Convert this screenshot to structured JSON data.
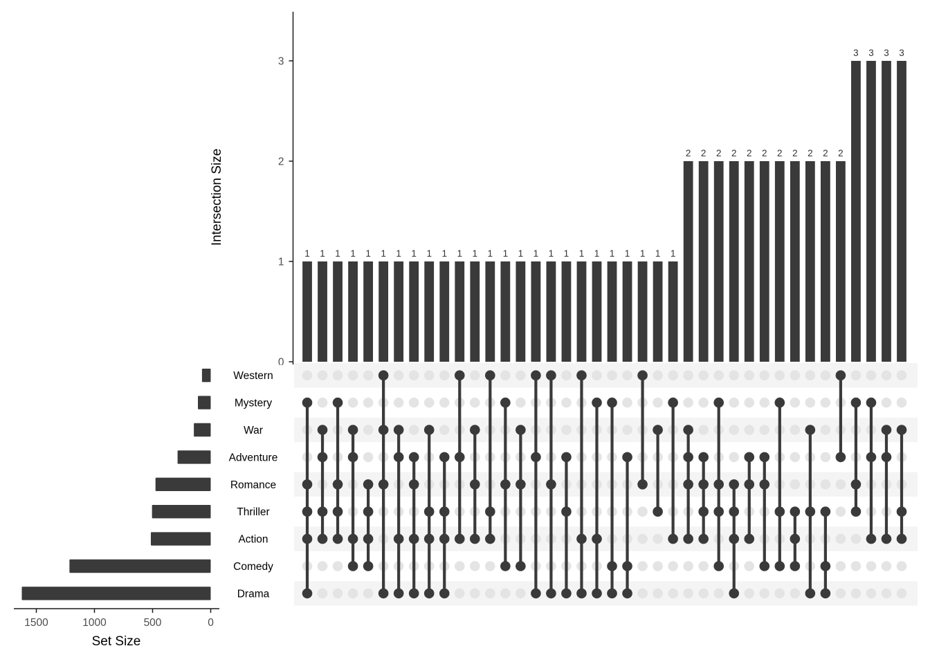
{
  "chart_data": {
    "type": "upset",
    "intersection_axis": {
      "label": "Intersection Size",
      "ticks": [
        0,
        1,
        2,
        3
      ],
      "range": [
        0,
        3.5
      ]
    },
    "set_axis": {
      "label": "Set Size",
      "ticks": [
        1500,
        1000,
        500,
        0
      ],
      "range": [
        0,
        1700
      ]
    },
    "legend_position": "none",
    "grid": false,
    "colors": {
      "bar": "#3a3a3a",
      "active_dot": "#3a3a3a",
      "inactive_dot": "#e4e4e4",
      "stripe": "#f4f4f4",
      "axis": "#1a1a1a",
      "tick_label": "#4d4d4d",
      "value_label": "#333333",
      "set_label": "#000000",
      "background": "#ffffff"
    },
    "sets": [
      {
        "name": "Western",
        "size": 75
      },
      {
        "name": "Mystery",
        "size": 110
      },
      {
        "name": "War",
        "size": 145
      },
      {
        "name": "Adventure",
        "size": 285
      },
      {
        "name": "Romance",
        "size": 475
      },
      {
        "name": "Thriller",
        "size": 505
      },
      {
        "name": "Action",
        "size": 515
      },
      {
        "name": "Comedy",
        "size": 1215
      },
      {
        "name": "Drama",
        "size": 1625
      }
    ],
    "intersections": [
      {
        "sets": [
          "Mystery",
          "Romance",
          "Thriller",
          "Action",
          "Drama"
        ],
        "size": 1
      },
      {
        "sets": [
          "War",
          "Adventure",
          "Thriller",
          "Action"
        ],
        "size": 1
      },
      {
        "sets": [
          "Mystery",
          "Romance",
          "Thriller",
          "Action"
        ],
        "size": 1
      },
      {
        "sets": [
          "War",
          "Adventure",
          "Action",
          "Comedy"
        ],
        "size": 1
      },
      {
        "sets": [
          "Romance",
          "Thriller",
          "Action",
          "Comedy"
        ],
        "size": 1
      },
      {
        "sets": [
          "Western",
          "War",
          "Romance",
          "Drama"
        ],
        "size": 1
      },
      {
        "sets": [
          "War",
          "Adventure",
          "Action",
          "Drama"
        ],
        "size": 1
      },
      {
        "sets": [
          "Adventure",
          "Romance",
          "Action",
          "Drama"
        ],
        "size": 1
      },
      {
        "sets": [
          "War",
          "Thriller",
          "Action",
          "Drama"
        ],
        "size": 1
      },
      {
        "sets": [
          "Adventure",
          "Thriller",
          "Action",
          "Drama"
        ],
        "size": 1
      },
      {
        "sets": [
          "Western",
          "Adventure",
          "Action"
        ],
        "size": 1
      },
      {
        "sets": [
          "War",
          "Romance",
          "Action"
        ],
        "size": 1
      },
      {
        "sets": [
          "Western",
          "Thriller",
          "Action"
        ],
        "size": 1
      },
      {
        "sets": [
          "Mystery",
          "Romance",
          "Comedy"
        ],
        "size": 1
      },
      {
        "sets": [
          "War",
          "Romance",
          "Comedy"
        ],
        "size": 1
      },
      {
        "sets": [
          "Western",
          "Adventure",
          "Drama"
        ],
        "size": 1
      },
      {
        "sets": [
          "Western",
          "Romance",
          "Drama"
        ],
        "size": 1
      },
      {
        "sets": [
          "Adventure",
          "Thriller",
          "Drama"
        ],
        "size": 1
      },
      {
        "sets": [
          "Western",
          "Action",
          "Drama"
        ],
        "size": 1
      },
      {
        "sets": [
          "Mystery",
          "Action",
          "Drama"
        ],
        "size": 1
      },
      {
        "sets": [
          "Mystery",
          "Comedy",
          "Drama"
        ],
        "size": 1
      },
      {
        "sets": [
          "Adventure",
          "Comedy",
          "Drama"
        ],
        "size": 1
      },
      {
        "sets": [
          "Western",
          "Romance"
        ],
        "size": 1
      },
      {
        "sets": [
          "War",
          "Thriller"
        ],
        "size": 1
      },
      {
        "sets": [
          "Mystery",
          "Action"
        ],
        "size": 1
      },
      {
        "sets": [
          "War",
          "Adventure",
          "Romance",
          "Action"
        ],
        "size": 2
      },
      {
        "sets": [
          "Adventure",
          "Romance",
          "Thriller",
          "Action"
        ],
        "size": 2
      },
      {
        "sets": [
          "Mystery",
          "Romance",
          "Thriller",
          "Comedy"
        ],
        "size": 2
      },
      {
        "sets": [
          "Romance",
          "Thriller",
          "Action",
          "Drama"
        ],
        "size": 2
      },
      {
        "sets": [
          "Adventure",
          "Romance",
          "Action"
        ],
        "size": 2
      },
      {
        "sets": [
          "Adventure",
          "Romance",
          "Comedy"
        ],
        "size": 2
      },
      {
        "sets": [
          "Mystery",
          "Thriller",
          "Comedy"
        ],
        "size": 2
      },
      {
        "sets": [
          "Thriller",
          "Action",
          "Comedy"
        ],
        "size": 2
      },
      {
        "sets": [
          "War",
          "Thriller",
          "Drama"
        ],
        "size": 2
      },
      {
        "sets": [
          "Thriller",
          "Comedy",
          "Drama"
        ],
        "size": 2
      },
      {
        "sets": [
          "Western",
          "Adventure"
        ],
        "size": 2
      },
      {
        "sets": [
          "Mystery",
          "Romance",
          "Thriller"
        ],
        "size": 3
      },
      {
        "sets": [
          "Mystery",
          "Adventure",
          "Action"
        ],
        "size": 3
      },
      {
        "sets": [
          "War",
          "Adventure",
          "Action"
        ],
        "size": 3
      },
      {
        "sets": [
          "War",
          "Thriller",
          "Action"
        ],
        "size": 3
      }
    ]
  }
}
